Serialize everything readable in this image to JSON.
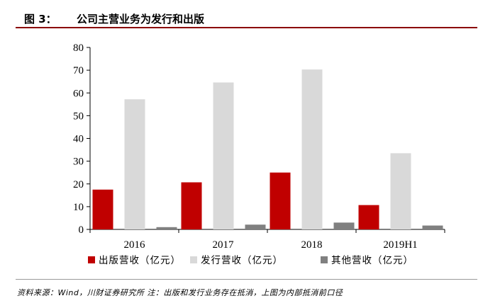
{
  "figure": {
    "label": "图 3：",
    "title": "公司主营业务为发行和出版"
  },
  "chart_data": {
    "type": "bar",
    "categories": [
      "2016",
      "2017",
      "2018",
      "2019H1"
    ],
    "series": [
      {
        "name": "出版营收（亿元）",
        "color": "#c00000",
        "values": [
          17.5,
          20.7,
          25.0,
          10.7
        ]
      },
      {
        "name": "发行营收（亿元）",
        "color": "#d9d9d9",
        "values": [
          57.2,
          64.6,
          70.3,
          33.5
        ]
      },
      {
        "name": "其他营收（亿元）",
        "color": "#808080",
        "values": [
          1.0,
          2.1,
          3.0,
          1.7
        ]
      }
    ],
    "ylim": [
      0,
      80
    ],
    "yticks": [
      "0",
      "10",
      "20",
      "30",
      "40",
      "50",
      "60",
      "70",
      "80"
    ],
    "grid": false,
    "legend": "bottom"
  },
  "source": "资料来源：Wind，川财证券研究所 注：出版和发行业务存在抵消，上图为内部抵消前口径"
}
